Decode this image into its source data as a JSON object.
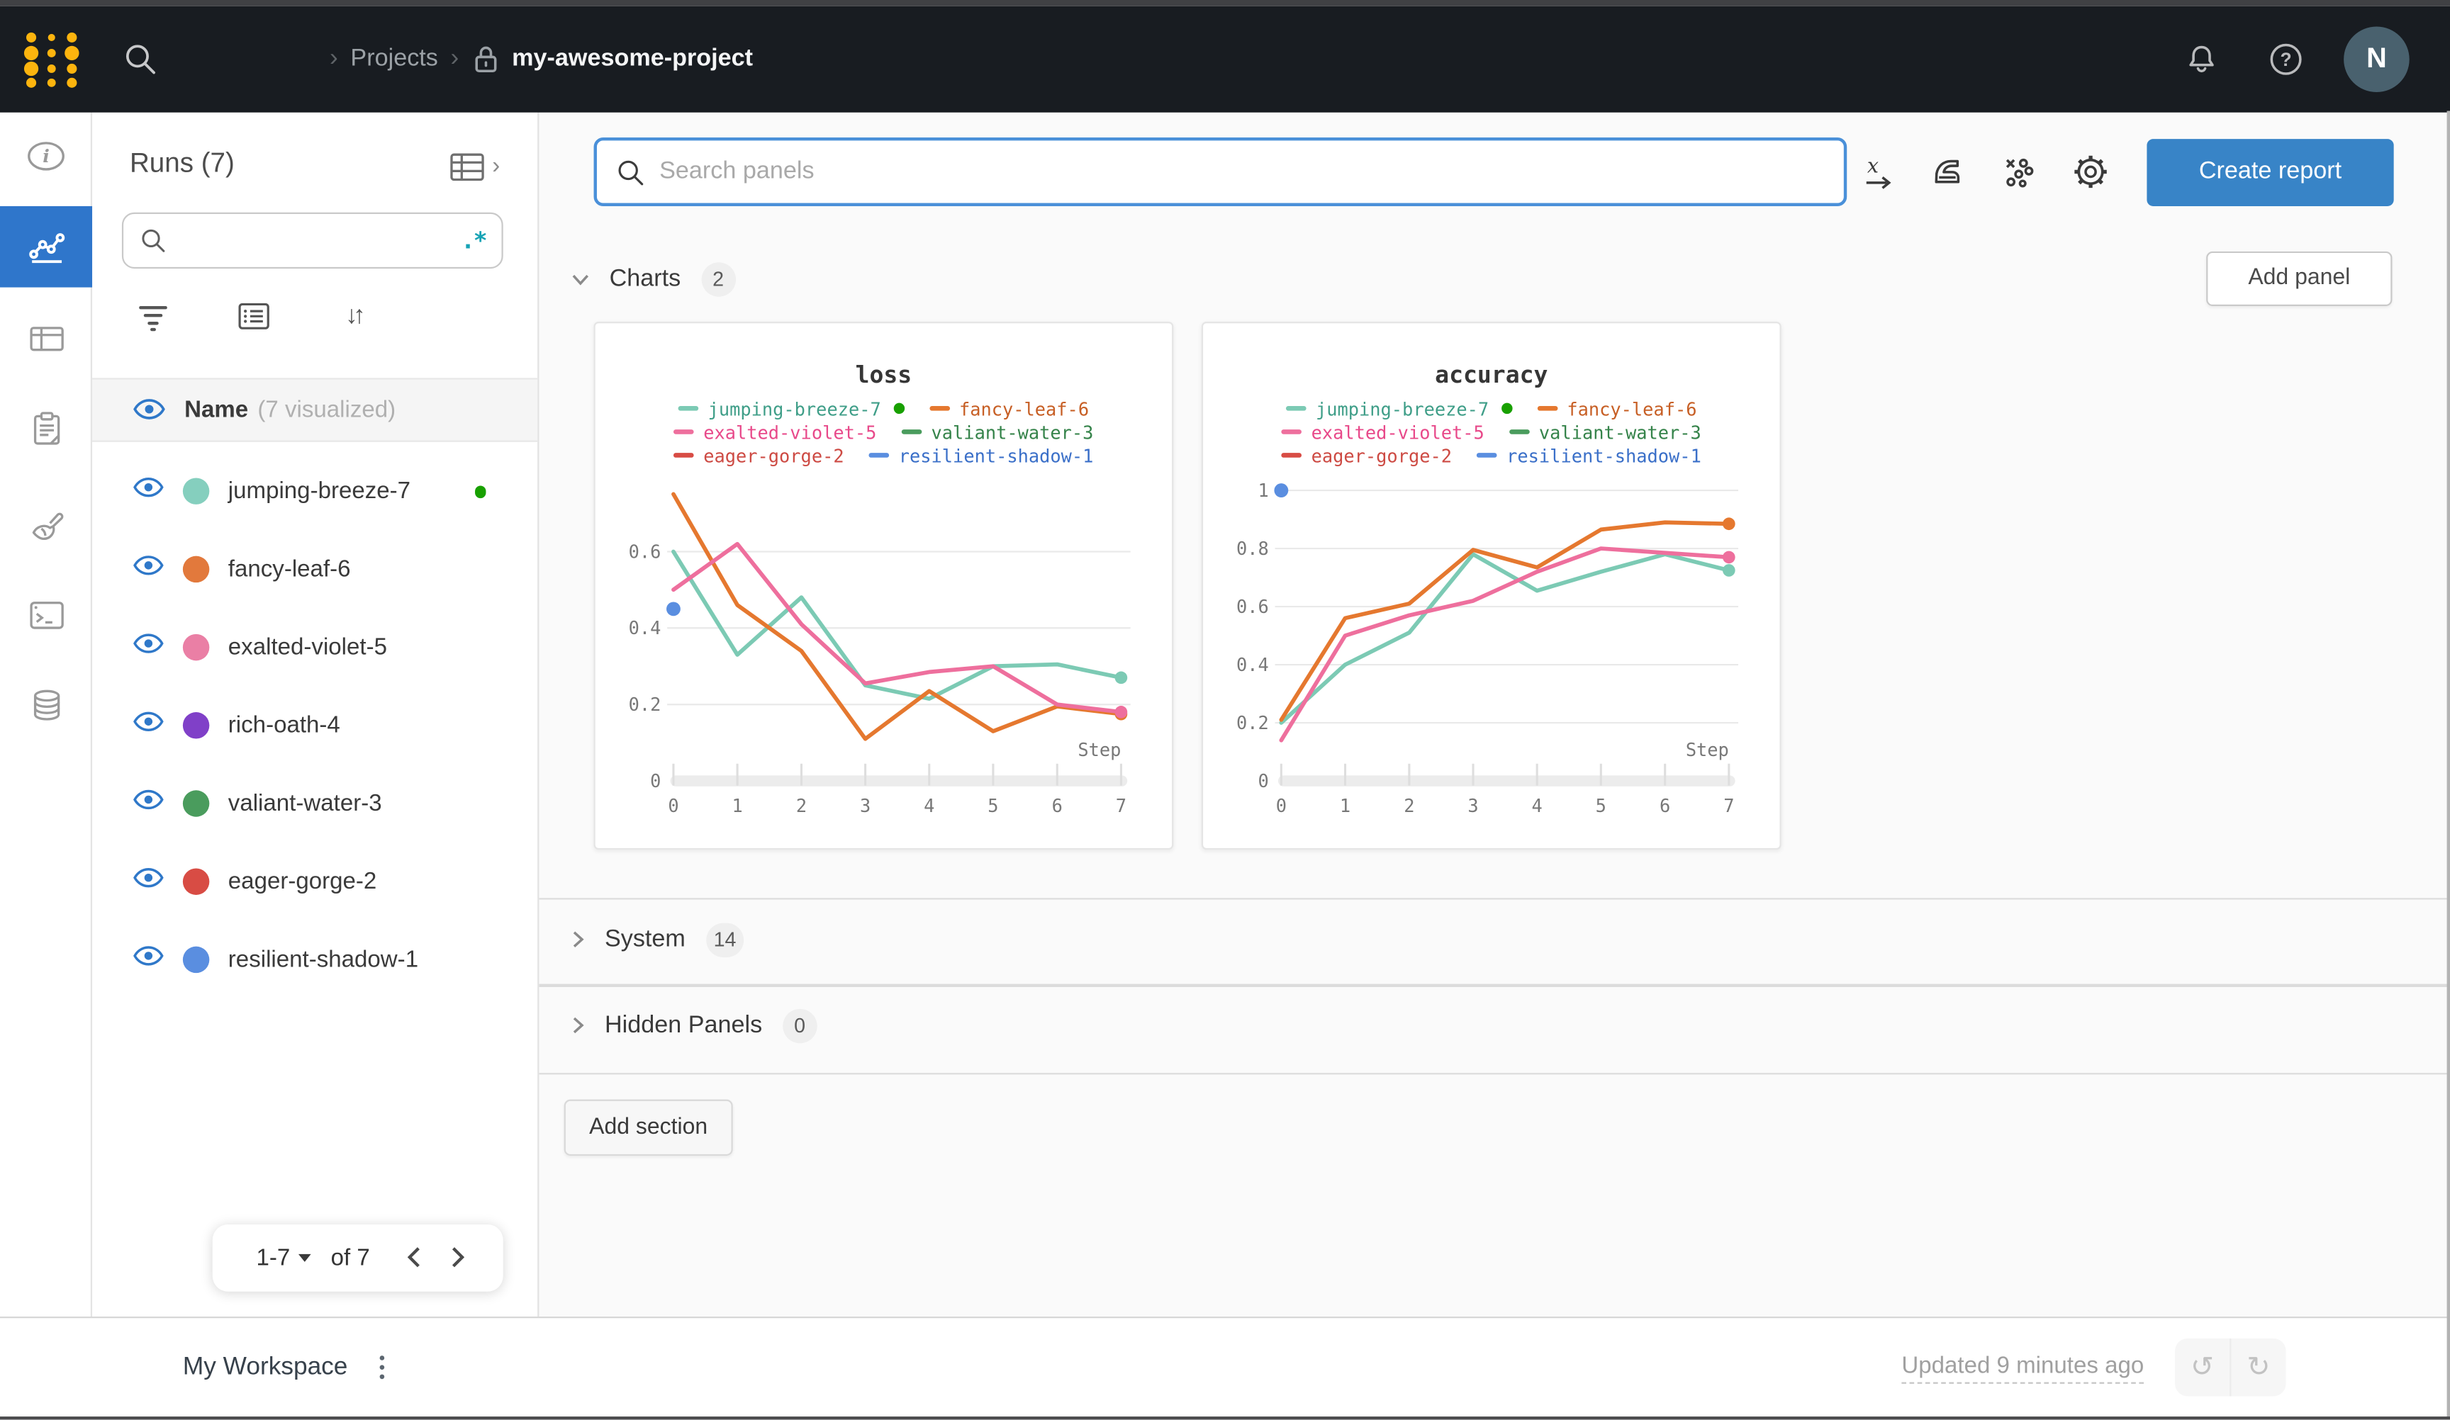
{
  "topbar": {
    "breadcrumb": {
      "section": "Projects",
      "project": "my-awesome-project"
    },
    "avatar_initial": "N"
  },
  "colors": {
    "accent_blue": "#2f76cb",
    "create_button_blue": "#3884c7",
    "running_green": "#18a000",
    "avatar_bg": "#49616e",
    "topbar_bg": "#181c21",
    "regex_teal": "#16a3b5"
  },
  "runs_sidebar": {
    "title": "Runs (7)",
    "regex_hint": ".*",
    "header": {
      "name": "Name",
      "visualized": "(7 visualized)"
    },
    "runs": [
      {
        "name": "jumping-breeze-7",
        "color": "#85cfbe",
        "running": true
      },
      {
        "name": "fancy-leaf-6",
        "color": "#e2793c",
        "running": false
      },
      {
        "name": "exalted-violet-5",
        "color": "#ea7fa5",
        "running": false
      },
      {
        "name": "rich-oath-4",
        "color": "#8040c8",
        "running": false
      },
      {
        "name": "valiant-water-3",
        "color": "#4a9c5d",
        "running": false
      },
      {
        "name": "eager-gorge-2",
        "color": "#d84c44",
        "running": false
      },
      {
        "name": "resilient-shadow-1",
        "color": "#5a8ee0",
        "running": false
      }
    ],
    "pagination": {
      "range": "1-7",
      "of_label": "of 7"
    }
  },
  "main": {
    "search": {
      "placeholder": "Search panels"
    },
    "create_report_label": "Create report",
    "add_panel_label": "Add panel",
    "add_section_label": "Add section",
    "sections": [
      {
        "label": "Charts",
        "count": "2"
      },
      {
        "label": "System",
        "count": "14"
      },
      {
        "label": "Hidden Panels",
        "count": "0"
      }
    ]
  },
  "footer": {
    "workspace_label": "My Workspace",
    "updated_text": "Updated 9 minutes ago"
  },
  "chart_data": [
    {
      "type": "line",
      "title": "loss",
      "xlabel": "Step",
      "x": [
        0,
        1,
        2,
        3,
        4,
        5,
        6,
        7
      ],
      "ylim": [
        0,
        0.76
      ],
      "yticks": [
        0,
        0.2,
        0.4,
        0.6
      ],
      "grid": true,
      "legend_position": "top",
      "series": [
        {
          "name": "jumping-breeze-7",
          "color": "#7ccab4",
          "values": [
            0.6,
            0.33,
            0.48,
            0.25,
            0.215,
            0.3,
            0.305,
            0.27
          ],
          "end_dot": true
        },
        {
          "name": "fancy-leaf-6",
          "color": "#e5782f",
          "values": [
            0.75,
            0.46,
            0.34,
            0.11,
            0.235,
            0.13,
            0.195,
            0.175
          ],
          "end_dot": true
        },
        {
          "name": "exalted-violet-5",
          "color": "#ee6f9d",
          "values": [
            0.5,
            0.62,
            0.41,
            0.255,
            0.285,
            0.3,
            0.2,
            0.18
          ],
          "end_dot": true
        }
      ],
      "points": [
        {
          "name": "resilient-shadow-1",
          "color": "#5a8ee0",
          "x": 0,
          "y": 0.45
        }
      ],
      "legend": [
        {
          "label": "jumping-breeze-7",
          "color": "#7ccab4",
          "text_color": "#3f9e88",
          "running_dot": true
        },
        {
          "label": "fancy-leaf-6",
          "color": "#e5782f",
          "text_color": "#c75f25"
        },
        {
          "label": "exalted-violet-5",
          "color": "#ee6f9d",
          "text_color": "#e8498a"
        },
        {
          "label": "valiant-water-3",
          "color": "#4a9c5d",
          "text_color": "#35834a"
        },
        {
          "label": "eager-gorge-2",
          "color": "#d84c44",
          "text_color": "#cd4a43"
        },
        {
          "label": "resilient-shadow-1",
          "color": "#5a8ee0",
          "text_color": "#3a6fc8"
        }
      ]
    },
    {
      "type": "line",
      "title": "accuracy",
      "xlabel": "Step",
      "x": [
        0,
        1,
        2,
        3,
        4,
        5,
        6,
        7
      ],
      "ylim": [
        0,
        1
      ],
      "yticks": [
        0,
        0.2,
        0.4,
        0.6,
        0.8,
        1
      ],
      "grid": true,
      "legend_position": "top",
      "series": [
        {
          "name": "jumping-breeze-7",
          "color": "#7ccab4",
          "values": [
            0.2,
            0.4,
            0.51,
            0.78,
            0.655,
            0.72,
            0.78,
            0.725
          ],
          "end_dot": true
        },
        {
          "name": "fancy-leaf-6",
          "color": "#e5782f",
          "values": [
            0.21,
            0.56,
            0.61,
            0.795,
            0.735,
            0.865,
            0.89,
            0.885
          ],
          "end_dot": true
        },
        {
          "name": "exalted-violet-5",
          "color": "#ee6f9d",
          "values": [
            0.14,
            0.5,
            0.57,
            0.62,
            0.72,
            0.8,
            0.785,
            0.77
          ],
          "end_dot": true
        }
      ],
      "points": [
        {
          "name": "resilient-shadow-1",
          "color": "#5a8ee0",
          "x": 0,
          "y": 1.0
        }
      ],
      "legend": [
        {
          "label": "jumping-breeze-7",
          "color": "#7ccab4",
          "text_color": "#3f9e88",
          "running_dot": true
        },
        {
          "label": "fancy-leaf-6",
          "color": "#e5782f",
          "text_color": "#c75f25"
        },
        {
          "label": "exalted-violet-5",
          "color": "#ee6f9d",
          "text_color": "#e8498a"
        },
        {
          "label": "valiant-water-3",
          "color": "#4a9c5d",
          "text_color": "#35834a"
        },
        {
          "label": "eager-gorge-2",
          "color": "#d84c44",
          "text_color": "#cd4a43"
        },
        {
          "label": "resilient-shadow-1",
          "color": "#5a8ee0",
          "text_color": "#3a6fc8"
        }
      ]
    }
  ]
}
